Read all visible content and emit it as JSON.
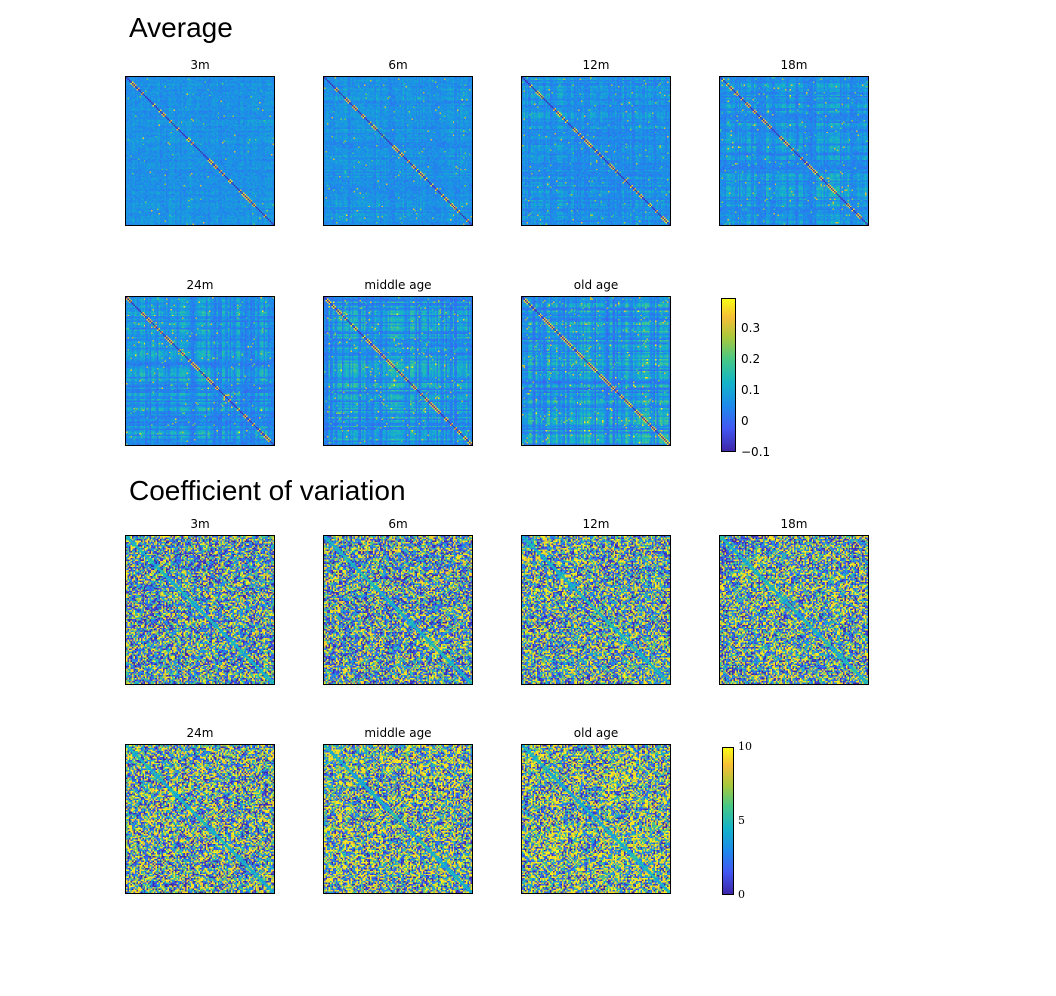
{
  "sections": [
    {
      "title": "Average",
      "panels": [
        "3m",
        "6m",
        "12m",
        "18m",
        "24m",
        "middle age",
        "old age"
      ],
      "colorbar": {
        "min": -0.12,
        "max": 0.38,
        "ticks": [
          "0.3",
          "0.2",
          "0.1",
          "0",
          "−0.1"
        ]
      }
    },
    {
      "title": "Coefficient of variation",
      "panels": [
        "3m",
        "6m",
        "12m",
        "18m",
        "24m",
        "middle age",
        "old age"
      ],
      "colorbar": {
        "min": 0,
        "max": 10,
        "ticks": [
          "10",
          "5",
          "0"
        ]
      }
    }
  ],
  "chart_data": [
    {
      "type": "heatmap",
      "title": "Average",
      "panels": [
        "3m",
        "6m",
        "12m",
        "18m",
        "24m",
        "middle age",
        "old age"
      ],
      "matrix_size": 100,
      "colormap": "parula",
      "clim": [
        -0.12,
        0.38
      ],
      "colorbar_ticks": [
        0.3,
        0.2,
        0.1,
        0,
        -0.1
      ],
      "typical_offdiagonal_value": 0.05,
      "diagonal": "dark (low value)"
    },
    {
      "type": "heatmap",
      "title": "Coefficient of variation",
      "panels": [
        "3m",
        "6m",
        "12m",
        "18m",
        "24m",
        "middle age",
        "old age"
      ],
      "matrix_size": 100,
      "colormap": "parula",
      "clim": [
        0,
        10
      ],
      "colorbar_ticks": [
        10,
        5,
        0
      ]
    }
  ]
}
